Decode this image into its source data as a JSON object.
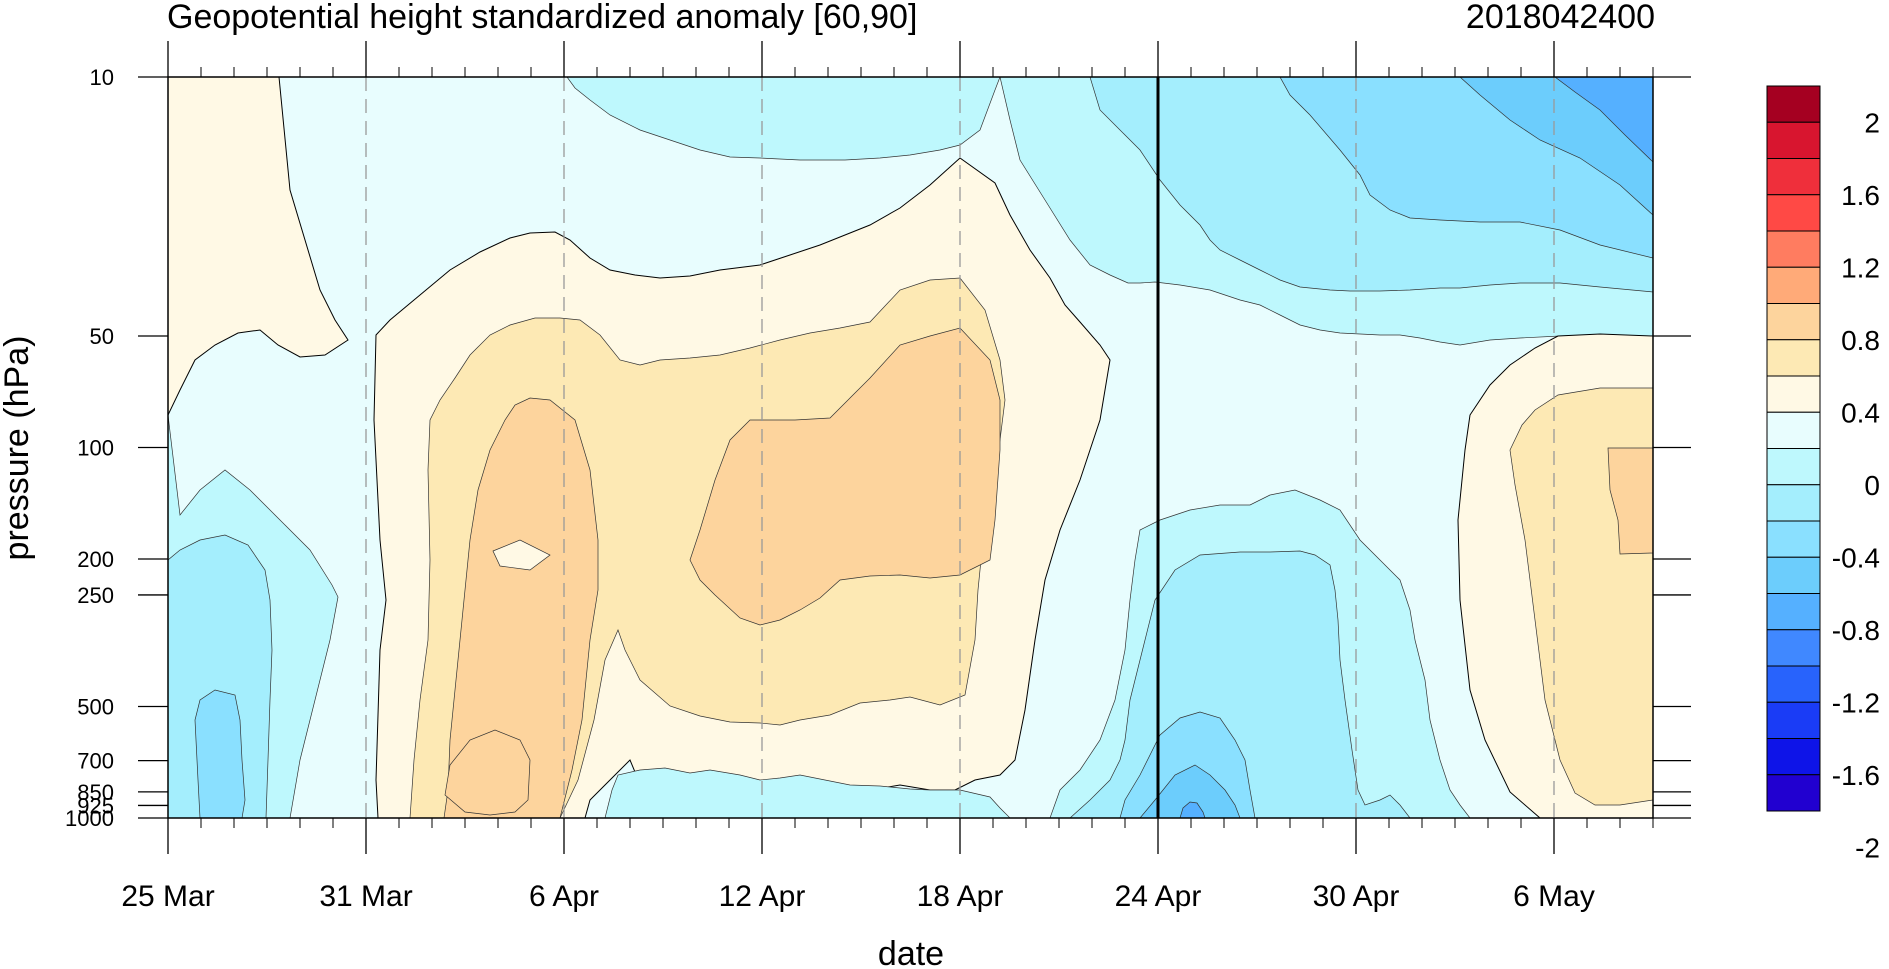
{
  "title": "Geopotential height standardized anomaly [60,90]",
  "run_id": "2018042400",
  "chart_data": {
    "type": "contour",
    "title": "Geopotential height standardized anomaly [60,90]",
    "xlabel": "date",
    "ylabel": "pressure (hPa)",
    "x_ticks": [
      "25 Mar",
      "31 Mar",
      "6 Apr",
      "12 Apr",
      "18 Apr",
      "24 Apr",
      "30 Apr",
      "6 May"
    ],
    "x_range": [
      "25 Mar",
      "9 May"
    ],
    "y_ticks": [
      10,
      50,
      100,
      200,
      250,
      500,
      700,
      850,
      925,
      1000
    ],
    "y_range": [
      1000,
      10
    ],
    "y_scale": "log-pressure",
    "marked_date": "24 Apr",
    "colorbar_labels": [
      "2",
      "1.6",
      "1.2",
      "0.8",
      "0.4",
      "0",
      "-0.4",
      "-0.8",
      "-1.2",
      "-1.6",
      "-2"
    ],
    "colorbar_colors": [
      "#a50021",
      "#d8152f",
      "#ef2f3b",
      "#ff4945",
      "#ff7c60",
      "#ffaa78",
      "#fdd49d",
      "#fde9b4",
      "#fff9e5",
      "#e8fdfe",
      "#bef8fd",
      "#a4eefd",
      "#8ae0ff",
      "#6ccdfc",
      "#55b0ff",
      "#4088ff",
      "#2863fc",
      "#1a3cf6",
      "#0e14e8",
      "#2100d0"
    ],
    "key_features": [
      {
        "date_range": [
          "1 Apr",
          "6 Apr"
        ],
        "pressure_range": [
          100,
          1000
        ],
        "value": 0.8
      },
      {
        "date_range": [
          "10 Apr",
          "19 Apr"
        ],
        "pressure_range": [
          60,
          300
        ],
        "value": 0.8
      },
      {
        "date_range": [
          "25 Apr",
          "30 Apr"
        ],
        "pressure_range": [
          200,
          1000
        ],
        "value": -0.8
      },
      {
        "date_range": [
          "5 May",
          "9 May"
        ],
        "pressure_range": [
          10,
          25
        ],
        "value": -1.2
      },
      {
        "date_range": [
          "25 Mar",
          "27 Mar"
        ],
        "pressure_range": [
          200,
          1000
        ],
        "value": -0.8
      },
      {
        "date_range": [
          "7 May",
          "9 May"
        ],
        "pressure_range": [
          100,
          200
        ],
        "value": 0.8
      }
    ]
  }
}
